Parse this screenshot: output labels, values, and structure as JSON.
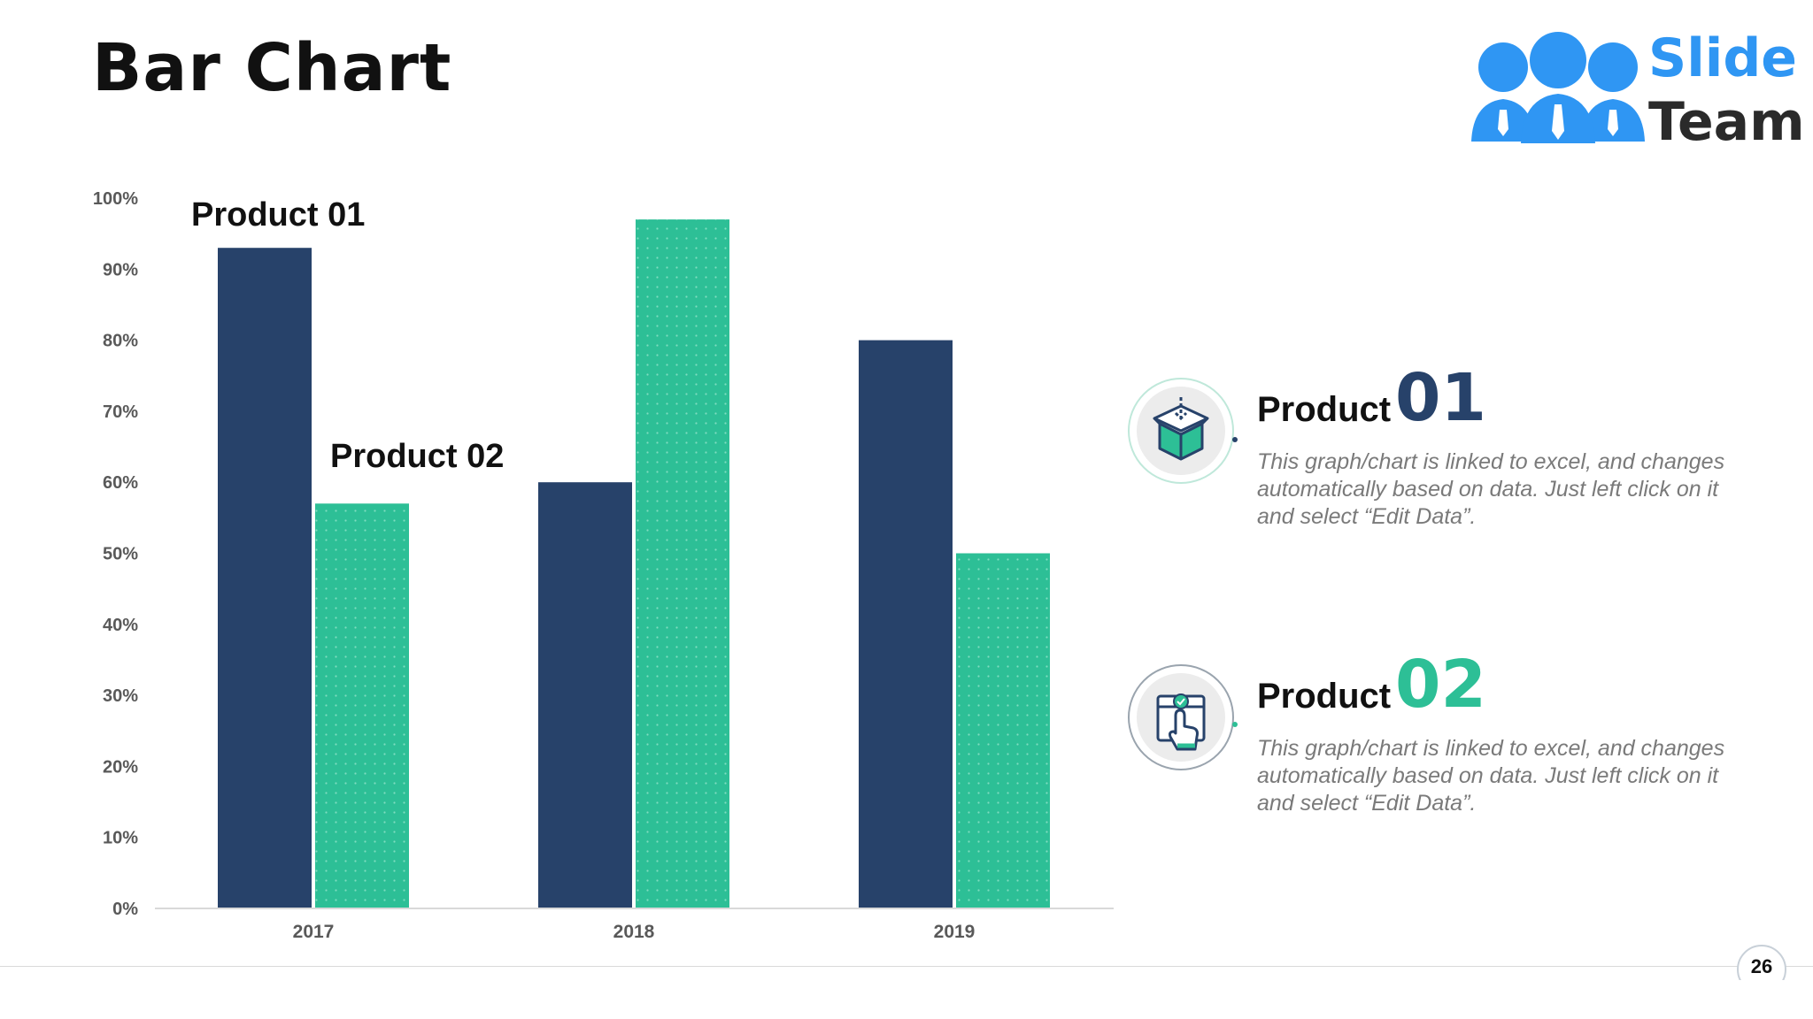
{
  "slide": {
    "title": "Bar Chart",
    "page_number": "26"
  },
  "logo": {
    "line1": "Slide",
    "line2": "Team"
  },
  "colors": {
    "product01": "#27426a",
    "product02": "#2dbf96",
    "logo_blue": "#2f96f3",
    "logo_dark": "#2a2a2a"
  },
  "chart_data": {
    "type": "bar",
    "categories": [
      "2017",
      "2018",
      "2019"
    ],
    "series": [
      {
        "name": "Product 01",
        "values": [
          93,
          60,
          80
        ]
      },
      {
        "name": "Product 02",
        "values": [
          57,
          97,
          50
        ]
      }
    ],
    "ylim": [
      0,
      100
    ],
    "y_ticks": [
      "0%",
      "10%",
      "20%",
      "30%",
      "40%",
      "50%",
      "60%",
      "70%",
      "80%",
      "90%",
      "100%"
    ],
    "grid": false
  },
  "legend": [
    {
      "name": "Product",
      "number": "01",
      "icon": "box-icon",
      "description": "This graph/chart is linked to excel, and changes automatically based on data. Just left click on it and select “Edit Data”."
    },
    {
      "name": "Product",
      "number": "02",
      "icon": "box-tap-icon",
      "description": "This graph/chart is linked to excel, and changes automatically based on data. Just left click on it and select “Edit Data”."
    }
  ]
}
